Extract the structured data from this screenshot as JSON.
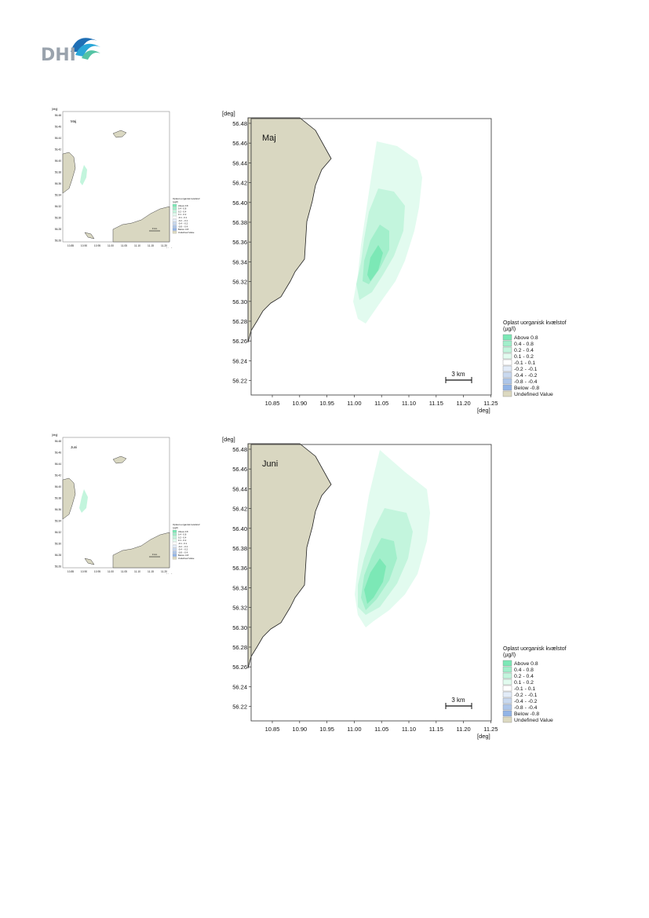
{
  "logo": {
    "text": "DHI"
  },
  "colors": {
    "land": "#d9d7c1",
    "legend": [
      "#7ce8b6",
      "#a2efcb",
      "#c3f5dd",
      "#e2fbef",
      "#ffffff",
      "#e3ecf8",
      "#c9d9ef",
      "#aec6e9",
      "#92b4e6",
      "#dcd9c0"
    ]
  },
  "axes": {
    "unit": "[deg]",
    "x_ticks": [
      "10.85",
      "10.90",
      "10.95",
      "11.00",
      "11.05",
      "11.10",
      "11.15",
      "11.20",
      "11.25"
    ],
    "y_ticks": [
      "56.48",
      "56.46",
      "56.44",
      "56.42",
      "56.40",
      "56.38",
      "56.36",
      "56.34",
      "56.32",
      "56.30",
      "56.28",
      "56.26",
      "56.24",
      "56.22"
    ]
  },
  "legend": {
    "title_line1": "Oplast uorganisk kvælstof",
    "title_line2": "(µg/l)",
    "items": [
      "Above  0.8",
      "0.4 -  0.8",
      "0.2 -  0.4",
      "0.1 -  0.2",
      "-0.1 -  0.1",
      "-0.2 - -0.1",
      "-0.4 - -0.2",
      "-0.8 - -0.4",
      "Below -0.8",
      "Undefined Value"
    ]
  },
  "scalebar": {
    "label": "3 km"
  },
  "panels": [
    {
      "month": "Maj"
    },
    {
      "month": "Juni"
    }
  ]
}
